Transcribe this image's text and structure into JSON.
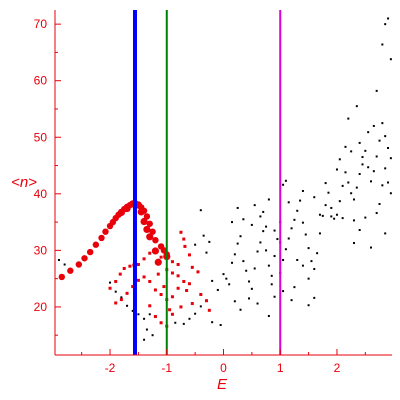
{
  "chart_data": {
    "type": "scatter",
    "title": "",
    "xlabel": "E",
    "ylabel": "<n>",
    "xlim": [
      -2.97,
      2.97
    ],
    "ylim": [
      11.5,
      72.5
    ],
    "xticks": [
      -2,
      -1,
      0,
      1,
      2
    ],
    "yticks": [
      20,
      30,
      40,
      50,
      60,
      70
    ],
    "grid": false,
    "legend": "none",
    "colors": {
      "axes": "#e8000b",
      "red_points": "#e8000b",
      "black_points": "#000000",
      "vline_blue": "#0000ff",
      "vline_green": "#008000",
      "vline_magenta": "#dd00dd"
    },
    "vertical_lines": [
      {
        "x": -1.56,
        "color": "blue"
      },
      {
        "x": -1.0,
        "color": "green"
      },
      {
        "x": 1.0,
        "color": "magenta"
      }
    ],
    "series": [
      {
        "color": "red",
        "description": "arc",
        "points": [
          [
            -2.85,
            25.3
          ],
          [
            -2.7,
            26.4
          ],
          [
            -2.55,
            27.5
          ],
          [
            -2.45,
            28.6
          ],
          [
            -2.35,
            29.7
          ],
          [
            -2.25,
            31.0
          ],
          [
            -2.15,
            32.2
          ],
          [
            -2.08,
            33.3
          ],
          [
            -2.0,
            34.3
          ],
          [
            -1.95,
            35.0
          ],
          [
            -1.9,
            35.7
          ],
          [
            -1.85,
            36.3
          ],
          [
            -1.8,
            36.8
          ],
          [
            -1.75,
            37.3
          ],
          [
            -1.7,
            37.7
          ],
          [
            -1.65,
            38.0
          ],
          [
            -1.6,
            38.3
          ],
          [
            -1.55,
            38.3
          ],
          [
            -1.5,
            38.1
          ],
          [
            -1.45,
            37.6
          ],
          [
            -1.4,
            37.0
          ],
          [
            -1.35,
            36.0
          ],
          [
            -1.3,
            34.7
          ],
          [
            -1.25,
            33.3
          ],
          [
            -1.2,
            31.8
          ],
          [
            -1.1,
            30.7
          ],
          [
            -1.05,
            30.0
          ],
          [
            -1.0,
            29.3
          ]
        ]
      },
      {
        "color": "red",
        "description": "lower branches",
        "points": [
          [
            -2.0,
            23.3
          ],
          [
            -1.9,
            24.5
          ],
          [
            -1.82,
            25.8
          ],
          [
            -1.75,
            26.8
          ],
          [
            -1.65,
            27.2
          ],
          [
            -1.58,
            27.4
          ],
          [
            -1.5,
            27.5
          ],
          [
            -1.4,
            28.5
          ],
          [
            -1.3,
            29.5
          ],
          [
            -1.2,
            29.7
          ],
          [
            -1.1,
            28.8
          ],
          [
            -0.9,
            28.0
          ],
          [
            -0.8,
            27.5
          ],
          [
            -1.9,
            20.7
          ],
          [
            -1.8,
            21.3
          ],
          [
            -1.7,
            22.4
          ],
          [
            -1.6,
            23.6
          ],
          [
            -1.5,
            24.7
          ],
          [
            -1.4,
            25.3
          ],
          [
            -1.3,
            24.5
          ],
          [
            -1.2,
            23.0
          ],
          [
            -1.1,
            22.2
          ],
          [
            -1.0,
            21.3
          ],
          [
            -0.9,
            21.8
          ],
          [
            -0.8,
            23.3
          ],
          [
            -0.7,
            24.5
          ],
          [
            -0.6,
            24.1
          ],
          [
            -1.2,
            18.3
          ],
          [
            -1.1,
            17.2
          ],
          [
            -1.0,
            16.6
          ],
          [
            -0.9,
            18.7
          ],
          [
            -0.75,
            20.0
          ],
          [
            -1.3,
            20.2
          ],
          [
            -1.0,
            26.6
          ],
          [
            -0.9,
            26.0
          ],
          [
            -0.8,
            25.5
          ],
          [
            -0.75,
            33.2
          ],
          [
            -0.7,
            32.0
          ],
          [
            -0.68,
            30.7
          ],
          [
            -0.6,
            29.2
          ],
          [
            -0.55,
            27.0
          ],
          [
            -0.45,
            26.2
          ],
          [
            -0.4,
            22.2
          ],
          [
            -0.3,
            21.1
          ],
          [
            -0.25,
            19.4
          ],
          [
            -0.55,
            20.6
          ],
          [
            -0.65,
            22.9
          ],
          [
            -1.15,
            25.8
          ],
          [
            -1.05,
            23.6
          ],
          [
            -0.95,
            19.5
          ]
        ]
      },
      {
        "color": "black",
        "description": "scattered points",
        "points": [
          [
            -2.9,
            28.3
          ],
          [
            -2.8,
            27.5
          ],
          [
            -2.0,
            24.3
          ],
          [
            -1.9,
            22.7
          ],
          [
            -1.8,
            21.7
          ],
          [
            -1.7,
            20.2
          ],
          [
            -1.6,
            19.3
          ],
          [
            -1.5,
            18.7
          ],
          [
            -1.4,
            17.9
          ],
          [
            -1.3,
            18.7
          ],
          [
            -1.35,
            16.0
          ],
          [
            -1.4,
            14.2
          ],
          [
            -1.25,
            15.0
          ],
          [
            -0.85,
            17.2
          ],
          [
            -0.7,
            17.0
          ],
          [
            -0.6,
            17.9
          ],
          [
            -0.5,
            18.8
          ],
          [
            -0.4,
            20.1
          ],
          [
            -0.2,
            17.3
          ],
          [
            -0.05,
            16.8
          ],
          [
            -0.5,
            31.0
          ],
          [
            -0.4,
            37.1
          ],
          [
            -0.35,
            32.6
          ],
          [
            -0.3,
            29.6
          ],
          [
            -0.25,
            31.5
          ],
          [
            -0.2,
            24.6
          ],
          [
            -0.1,
            23.0
          ],
          [
            0.0,
            25.8
          ],
          [
            0.05,
            25.0
          ],
          [
            0.1,
            24.0
          ],
          [
            0.15,
            27.8
          ],
          [
            0.2,
            29.3
          ],
          [
            0.25,
            31.2
          ],
          [
            0.3,
            32.5
          ],
          [
            0.35,
            28.1
          ],
          [
            0.4,
            26.4
          ],
          [
            0.45,
            24.5
          ],
          [
            0.5,
            23.2
          ],
          [
            0.55,
            26.8
          ],
          [
            0.6,
            29.8
          ],
          [
            0.65,
            31.4
          ],
          [
            0.7,
            33.4
          ],
          [
            0.75,
            30.0
          ],
          [
            0.8,
            27.3
          ],
          [
            0.85,
            25.5
          ],
          [
            0.9,
            29.0
          ],
          [
            0.95,
            32.0
          ],
          [
            1.0,
            35.0
          ],
          [
            0.2,
            21.0
          ],
          [
            0.3,
            19.5
          ],
          [
            0.45,
            21.5
          ],
          [
            0.6,
            20.6
          ],
          [
            0.8,
            18.4
          ],
          [
            0.85,
            24.0
          ],
          [
            0.15,
            35.0
          ],
          [
            0.25,
            37.5
          ],
          [
            0.35,
            35.5
          ],
          [
            0.5,
            34.5
          ],
          [
            0.65,
            36.0
          ],
          [
            0.75,
            34.2
          ],
          [
            1.05,
            41.6
          ],
          [
            1.1,
            42.3
          ],
          [
            1.05,
            28.3
          ],
          [
            1.1,
            30.2
          ],
          [
            1.15,
            32.1
          ],
          [
            1.2,
            33.9
          ],
          [
            1.25,
            35.4
          ],
          [
            1.3,
            37.0
          ],
          [
            1.35,
            38.8
          ],
          [
            1.4,
            34.9
          ],
          [
            1.45,
            32.8
          ],
          [
            1.5,
            30.4
          ],
          [
            1.55,
            28.1
          ],
          [
            1.6,
            26.7
          ],
          [
            1.65,
            29.5
          ],
          [
            1.7,
            33.0
          ],
          [
            1.75,
            36.1
          ],
          [
            1.8,
            38.0
          ],
          [
            1.85,
            40.2
          ],
          [
            1.9,
            37.5
          ],
          [
            1.95,
            35.6
          ],
          [
            2.0,
            36.3
          ],
          [
            2.05,
            38.7
          ],
          [
            2.1,
            41.4
          ],
          [
            2.15,
            43.8
          ],
          [
            2.2,
            42.0
          ],
          [
            2.25,
            40.1
          ],
          [
            2.3,
            39.0
          ],
          [
            2.35,
            41.1
          ],
          [
            2.4,
            43.5
          ],
          [
            2.45,
            45.2
          ],
          [
            2.5,
            47.6
          ],
          [
            2.55,
            44.7
          ],
          [
            2.6,
            42.2
          ],
          [
            2.65,
            44.0
          ],
          [
            2.7,
            46.6
          ],
          [
            2.75,
            49.4
          ],
          [
            2.8,
            52.5
          ],
          [
            2.85,
            50.2
          ],
          [
            2.9,
            48.1
          ],
          [
            2.95,
            46.3
          ],
          [
            1.3,
            28.3
          ],
          [
            1.4,
            27.3
          ],
          [
            1.5,
            25.0
          ],
          [
            1.25,
            23.5
          ],
          [
            1.2,
            21.2
          ],
          [
            1.05,
            22.8
          ],
          [
            1.5,
            20.3
          ],
          [
            1.6,
            21.6
          ],
          [
            1.7,
            36.3
          ],
          [
            1.9,
            36.0
          ],
          [
            2.1,
            35.7
          ],
          [
            2.3,
            35.3
          ],
          [
            2.5,
            35.8
          ],
          [
            2.7,
            36.6
          ],
          [
            2.05,
            46.1
          ],
          [
            2.25,
            47.5
          ],
          [
            2.4,
            49.0
          ],
          [
            2.55,
            50.9
          ],
          [
            2.65,
            52.0
          ],
          [
            2.7,
            58.2
          ],
          [
            2.35,
            55.5
          ],
          [
            2.2,
            53.3
          ],
          [
            2.9,
            71.0
          ],
          [
            2.85,
            70.0
          ],
          [
            2.95,
            63.8
          ],
          [
            2.8,
            66.4
          ],
          [
            2.75,
            38.2
          ],
          [
            2.8,
            41.5
          ],
          [
            2.85,
            44.5
          ],
          [
            2.9,
            42.0
          ],
          [
            2.95,
            40.1
          ],
          [
            2.85,
            33.0
          ],
          [
            2.6,
            30.5
          ],
          [
            2.3,
            31.3
          ],
          [
            2.4,
            33.6
          ],
          [
            1.0,
            31.4
          ],
          [
            0.9,
            33.5
          ],
          [
            1.0,
            26.0
          ],
          [
            0.9,
            21.8
          ],
          [
            0.55,
            38.0
          ],
          [
            0.7,
            36.8
          ],
          [
            0.8,
            39.0
          ],
          [
            1.15,
            38.5
          ],
          [
            1.4,
            40.5
          ],
          [
            1.6,
            39.4
          ],
          [
            1.8,
            41.9
          ],
          [
            2.0,
            44.3
          ],
          [
            2.15,
            48.3
          ],
          [
            2.45,
            46.5
          ]
        ]
      },
      {
        "color": "red",
        "description": "large markers on arc",
        "points": [
          [
            -1.8,
            36.7
          ],
          [
            -1.7,
            37.4
          ],
          [
            -1.6,
            38.2
          ],
          [
            -1.5,
            38.0
          ],
          [
            -1.45,
            36.8
          ],
          [
            -1.4,
            35.1
          ],
          [
            -1.35,
            33.7
          ],
          [
            -1.3,
            32.4
          ],
          [
            -1.2,
            29.9
          ],
          [
            -1.0,
            28.9
          ],
          [
            -1.15,
            27.9
          ]
        ]
      }
    ]
  }
}
